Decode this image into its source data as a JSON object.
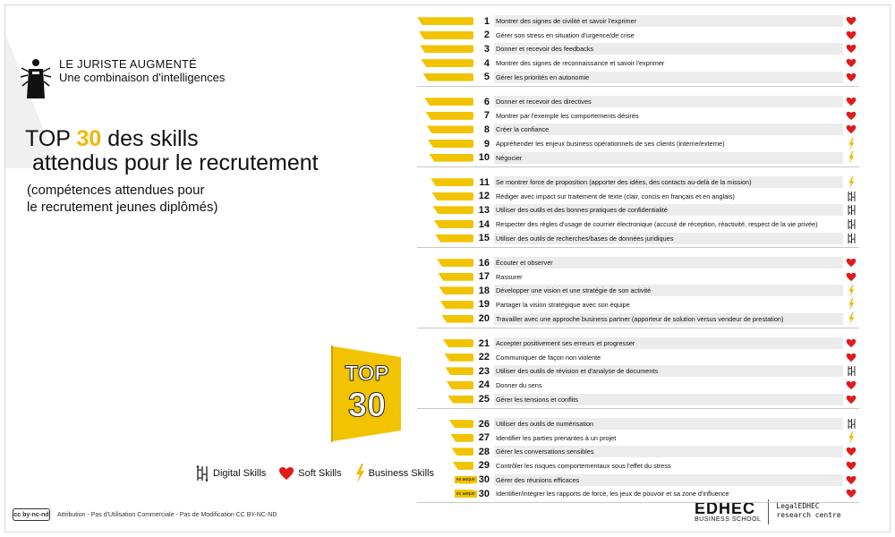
{
  "brand": {
    "name": "LE JURISTE AUGMENTÉ",
    "tagline": "Une combinaison d'intelligences"
  },
  "title": {
    "prefix": "TOP",
    "accent": "30",
    "suffix": "des skills",
    "line2": "attendus pour le recrutement"
  },
  "subtitle": {
    "line1": "(compétences attendues pour",
    "line2": "le recrutement jeunes diplômés)"
  },
  "badge": {
    "word": "TOP",
    "number": "30"
  },
  "legend": {
    "digital": "Digital Skills",
    "soft": "Soft Skills",
    "business": "Business Skills"
  },
  "colors": {
    "accent": "#f2c300",
    "heart": "#e01b1b",
    "bolt": "#f2b705"
  },
  "footer": {
    "cc_text": "Attribution - Pas d'Utilisation Commerciale - Pas de Modification CC BY-NC-ND",
    "edhec": "EDHEC",
    "edhec_sub": "BUSINESS SCHOOL",
    "centre_line1": "LegalEDHEC",
    "centre_line2": "research centre"
  },
  "chart_data": {
    "type": "bar",
    "title": "TOP 30 des skills attendus pour le recrutement",
    "categories_icon_legend": [
      "digital",
      "soft",
      "business"
    ],
    "groups": [
      [
        {
          "rank": "1",
          "label": "Montrer des signes de civilité et savoir l'exprimer",
          "category": "soft",
          "bar": 1.0
        },
        {
          "rank": "2",
          "label": "Gérer son stress en situation d'urgence/de crise",
          "category": "soft",
          "bar": 0.97
        },
        {
          "rank": "3",
          "label": "Donner et recevoir des feedbacks",
          "category": "soft",
          "bar": 0.95
        },
        {
          "rank": "4",
          "label": "Montrer des signes de reconnaissance et savoir l'exprimer",
          "category": "soft",
          "bar": 0.93
        },
        {
          "rank": "5",
          "label": "Gérer les priorités en autonomie",
          "category": "soft",
          "bar": 0.9
        }
      ],
      [
        {
          "rank": "6",
          "label": "Donner et recevoir des directives",
          "category": "soft",
          "bar": 0.87
        },
        {
          "rank": "7",
          "label": "Montrer par l'exemple les comportements désirés",
          "category": "soft",
          "bar": 0.85
        },
        {
          "rank": "8",
          "label": "Créer la confiance",
          "category": "soft",
          "bar": 0.83
        },
        {
          "rank": "9",
          "label": "Appréhender les enjeux business opérationnels de ses clients (interne/externe)",
          "category": "business",
          "bar": 0.81
        },
        {
          "rank": "10",
          "label": "Négocier",
          "category": "business",
          "bar": 0.79
        }
      ],
      [
        {
          "rank": "11",
          "label": "Se montrer force de proposition (apporter des idées, des contacts au-delà de la mission)",
          "category": "business",
          "bar": 0.76
        },
        {
          "rank": "12",
          "label": "Rédiger avec impact sur traitement de texte (clair, concis en français et en anglais)",
          "category": "digital",
          "bar": 0.74
        },
        {
          "rank": "13",
          "label": "Utiliser des outils et des bonnes pratiques de confidentialité",
          "category": "digital",
          "bar": 0.72
        },
        {
          "rank": "14",
          "label": "Respecter des règles d'usage de courrier électronique (accusé de réception, réactivité, respect de la vie privée)",
          "category": "digital",
          "bar": 0.7
        },
        {
          "rank": "15",
          "label": "Utiliser des outils de recherches/bases de données juridiques",
          "category": "digital",
          "bar": 0.68
        }
      ],
      [
        {
          "rank": "16",
          "label": "Écouter et observer",
          "category": "soft",
          "bar": 0.65
        },
        {
          "rank": "17",
          "label": "Rassurer",
          "category": "soft",
          "bar": 0.63
        },
        {
          "rank": "18",
          "label": "Développer une vision et une stratégie de son activité",
          "category": "business",
          "bar": 0.61
        },
        {
          "rank": "19",
          "label": "Partager la vision stratégique avec son équipe",
          "category": "business",
          "bar": 0.59
        },
        {
          "rank": "20",
          "label": "Travailler avec une approche business partner (apporteur de solution versus vendeur de prestation)",
          "category": "business",
          "bar": 0.57
        }
      ],
      [
        {
          "rank": "21",
          "label": "Accepter positivement ses erreurs et progresser",
          "category": "soft",
          "bar": 0.54
        },
        {
          "rank": "22",
          "label": "Communiquer de façon non violente",
          "category": "soft",
          "bar": 0.52
        },
        {
          "rank": "23",
          "label": "Utiliser des outils de révision et d'analyse de documents",
          "category": "digital",
          "bar": 0.5
        },
        {
          "rank": "24",
          "label": "Donner du sens",
          "category": "soft",
          "bar": 0.48
        },
        {
          "rank": "25",
          "label": "Gérer les tensions et conflits",
          "category": "soft",
          "bar": 0.46
        }
      ],
      [
        {
          "rank": "26",
          "label": "Utiliser des outils de numérisation",
          "category": "digital",
          "bar": 0.43
        },
        {
          "rank": "27",
          "label": "Identifier les parties prenantes à un projet",
          "category": "business",
          "bar": 0.41
        },
        {
          "rank": "28",
          "label": "Gérer les conversations sensibles",
          "category": "soft",
          "bar": 0.39
        },
        {
          "rank": "29",
          "label": "Contrôler les risques comportementaux sous l'effet du stress",
          "category": "soft",
          "bar": 0.37
        },
        {
          "rank": "30",
          "label": "Gérer des réunions efficaces",
          "category": "soft",
          "bar": 0.35,
          "tag": "ex aequo"
        },
        {
          "rank": "30",
          "label": "Identifier/intégrer les rapports de force, les jeux de pouvoir et sa zone d'influence",
          "category": "soft",
          "bar": 0.35,
          "tag": "ex aequo"
        }
      ]
    ]
  }
}
